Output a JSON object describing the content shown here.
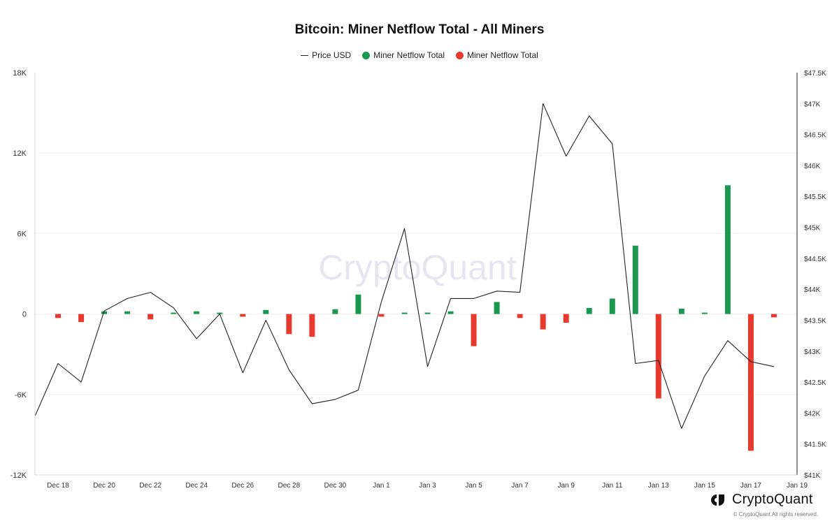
{
  "chart_data": {
    "type": "bar",
    "title": "Bitcoin: Miner Netflow Total - All Miners",
    "legend": {
      "placement": "top-center",
      "entries": [
        {
          "name": "Price USD",
          "color": "#222222",
          "marker": "line"
        },
        {
          "name": "Miner Netflow Total",
          "color": "#1a9850",
          "marker": "dot"
        },
        {
          "name": "Miner Netflow Total",
          "color": "#e8392e",
          "marker": "dot"
        }
      ]
    },
    "colors": {
      "positive": "#1a9850",
      "negative": "#e8392e",
      "price": "#222222"
    },
    "x_axis": {
      "range": [
        "2023-12-17",
        "2024-01-19"
      ],
      "ticks": [
        {
          "date": "2023-12-18",
          "label": "Dec 18"
        },
        {
          "date": "2023-12-20",
          "label": "Dec 20"
        },
        {
          "date": "2023-12-22",
          "label": "Dec 22"
        },
        {
          "date": "2023-12-24",
          "label": "Dec 24"
        },
        {
          "date": "2023-12-26",
          "label": "Dec 26"
        },
        {
          "date": "2023-12-28",
          "label": "Dec 28"
        },
        {
          "date": "2023-12-30",
          "label": "Dec 30"
        },
        {
          "date": "2024-01-01",
          "label": "Jan 1"
        },
        {
          "date": "2024-01-03",
          "label": "Jan 3"
        },
        {
          "date": "2024-01-05",
          "label": "Jan 5"
        },
        {
          "date": "2024-01-07",
          "label": "Jan 7"
        },
        {
          "date": "2024-01-09",
          "label": "Jan 9"
        },
        {
          "date": "2024-01-11",
          "label": "Jan 11"
        },
        {
          "date": "2024-01-13",
          "label": "Jan 13"
        },
        {
          "date": "2024-01-15",
          "label": "Jan 15"
        },
        {
          "date": "2024-01-17",
          "label": "Jan 17"
        },
        {
          "date": "2024-01-19",
          "label": "Jan 19"
        }
      ]
    },
    "y_left": {
      "range": [
        -12000,
        18000
      ],
      "ticks": [
        {
          "value": 18000,
          "label": "18K"
        },
        {
          "value": 12000,
          "label": "12K"
        },
        {
          "value": 6000,
          "label": "6K"
        },
        {
          "value": 0,
          "label": "0"
        },
        {
          "value": -6000,
          "label": "-6K"
        },
        {
          "value": -12000,
          "label": "-12K"
        }
      ]
    },
    "y_right": {
      "range": [
        41000,
        47500
      ],
      "ticks": [
        {
          "value": 47500,
          "label": "$47.5K"
        },
        {
          "value": 47000,
          "label": "$47K"
        },
        {
          "value": 46500,
          "label": "$46.5K"
        },
        {
          "value": 46000,
          "label": "$46K"
        },
        {
          "value": 45500,
          "label": "$45.5K"
        },
        {
          "value": 45000,
          "label": "$45K"
        },
        {
          "value": 44500,
          "label": "$44.5K"
        },
        {
          "value": 44000,
          "label": "$44K"
        },
        {
          "value": 43500,
          "label": "$43.5K"
        },
        {
          "value": 43000,
          "label": "$43K"
        },
        {
          "value": 42500,
          "label": "$42.5K"
        },
        {
          "value": 42000,
          "label": "$42K"
        },
        {
          "value": 41500,
          "label": "$41.5K"
        },
        {
          "value": 41000,
          "label": "$41K"
        }
      ]
    },
    "grid": true,
    "series": [
      {
        "name": "Miner Netflow Total",
        "axis": "left",
        "kind": "bar",
        "x": [
          "2023-12-18",
          "2023-12-19",
          "2023-12-20",
          "2023-12-21",
          "2023-12-22",
          "2023-12-23",
          "2023-12-24",
          "2023-12-25",
          "2023-12-26",
          "2023-12-27",
          "2023-12-28",
          "2023-12-29",
          "2023-12-30",
          "2023-12-31",
          "2024-01-01",
          "2024-01-02",
          "2024-01-03",
          "2024-01-04",
          "2024-01-05",
          "2024-01-06",
          "2024-01-07",
          "2024-01-08",
          "2024-01-09",
          "2024-01-10",
          "2024-01-11",
          "2024-01-12",
          "2024-01-13",
          "2024-01-14",
          "2024-01-15",
          "2024-01-16",
          "2024-01-17",
          "2024-01-18"
        ],
        "values": [
          -300,
          -600,
          200,
          200,
          -400,
          50,
          200,
          50,
          -200,
          300,
          -1500,
          -1700,
          350,
          1450,
          -200,
          80,
          40,
          200,
          -2400,
          900,
          -300,
          -1150,
          -650,
          450,
          1150,
          5100,
          -6300,
          400,
          50,
          9600,
          -10200,
          -250
        ]
      },
      {
        "name": "Price USD",
        "axis": "right",
        "kind": "line",
        "x": [
          "2023-12-17",
          "2023-12-18",
          "2023-12-19",
          "2023-12-20",
          "2023-12-21",
          "2023-12-22",
          "2023-12-23",
          "2023-12-24",
          "2023-12-25",
          "2023-12-26",
          "2023-12-27",
          "2023-12-28",
          "2023-12-29",
          "2023-12-30",
          "2023-12-31",
          "2024-01-01",
          "2024-01-02",
          "2024-01-03",
          "2024-01-04",
          "2024-01-05",
          "2024-01-06",
          "2024-01-07",
          "2024-01-08",
          "2024-01-09",
          "2024-01-10",
          "2024-01-11",
          "2024-01-12",
          "2024-01-13",
          "2024-01-14",
          "2024-01-15",
          "2024-01-16",
          "2024-01-17",
          "2024-01-18"
        ],
        "values": [
          41950,
          42800,
          42500,
          43650,
          43850,
          43950,
          43700,
          43200,
          43600,
          42650,
          43500,
          42700,
          42150,
          42220,
          42370,
          43800,
          44980,
          42750,
          43850,
          43850,
          43970,
          43950,
          47000,
          46150,
          46800,
          46350,
          42800,
          42850,
          41750,
          42600,
          43170,
          42830,
          42750
        ]
      }
    ]
  },
  "watermark": "CryptoQuant",
  "brand": {
    "name": "CryptoQuant",
    "copyright": "© CryptoQuant All rights reserved."
  }
}
